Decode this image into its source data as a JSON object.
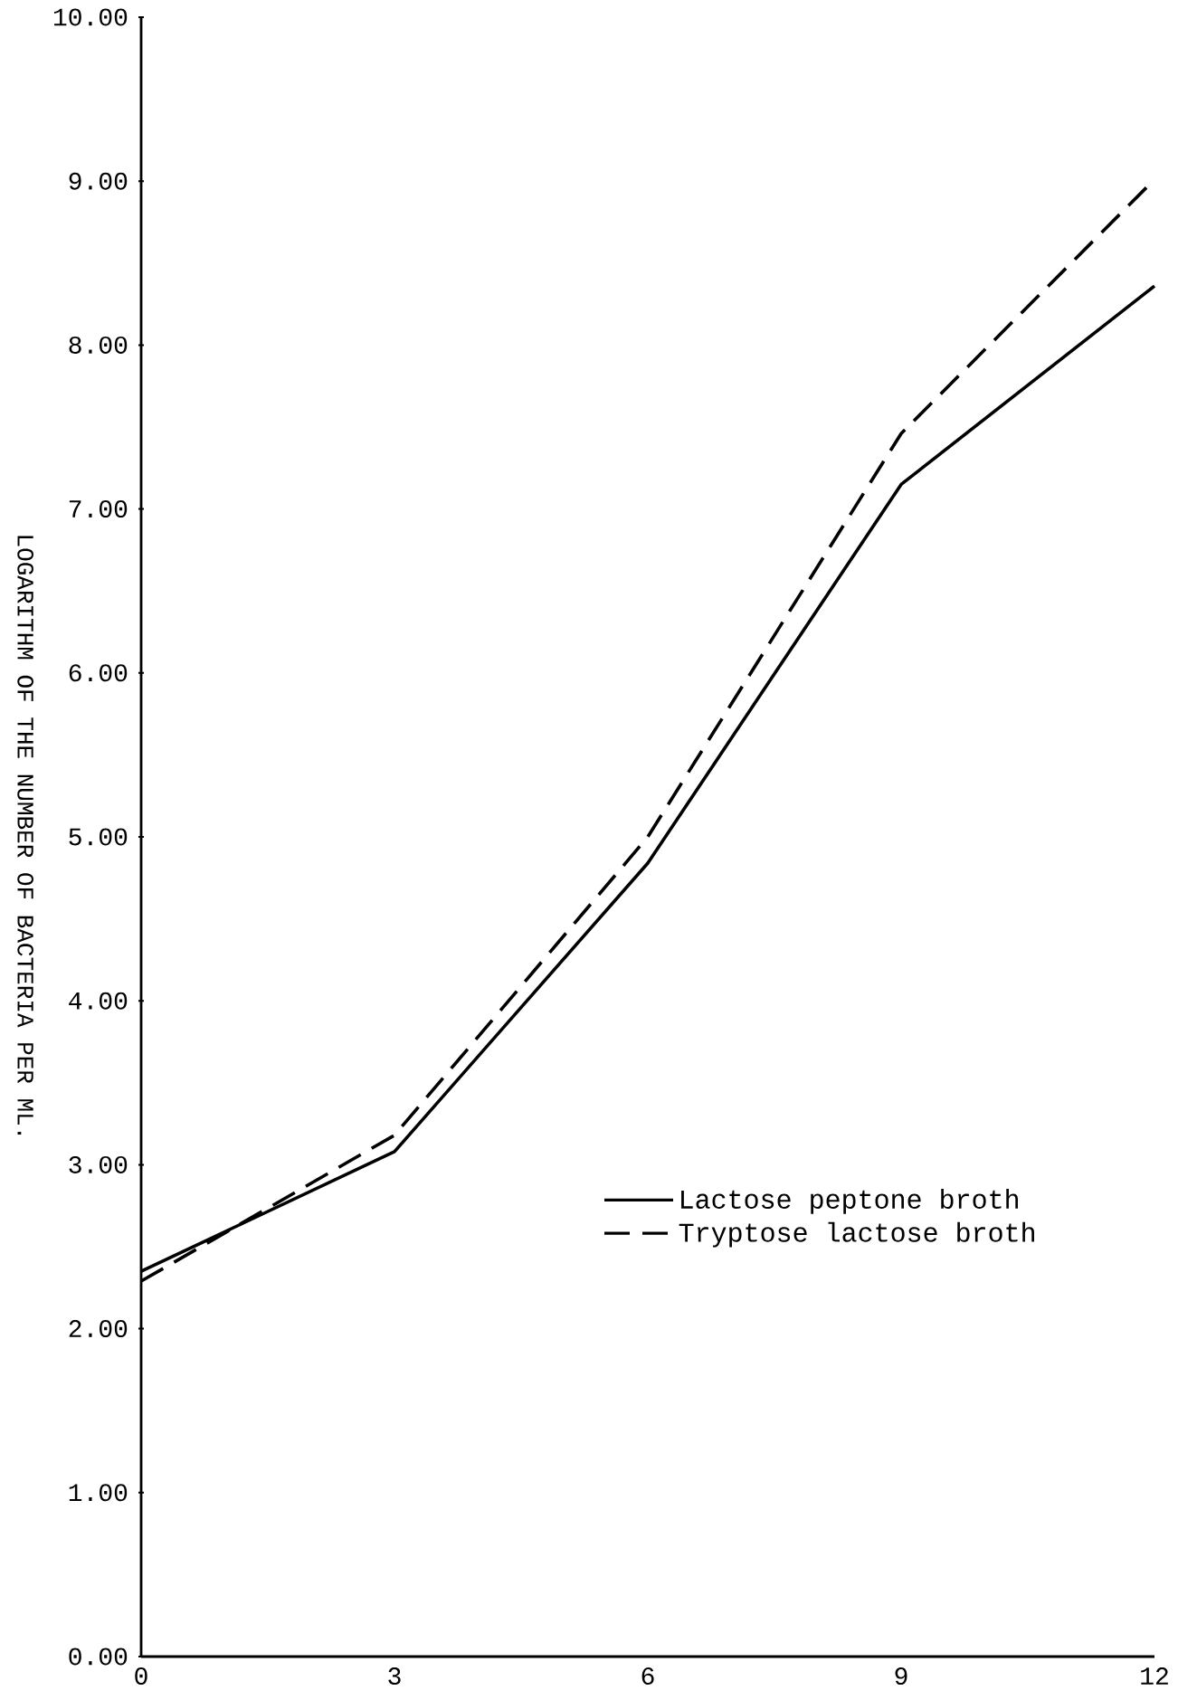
{
  "chart_data": {
    "type": "line",
    "ylabel": "LOGARITHM OF THE NUMBER OF BACTERIA PER ML.",
    "x": [
      0,
      3,
      6,
      9,
      12
    ],
    "xlim": [
      0,
      12
    ],
    "xticks": [
      0,
      3,
      6,
      9,
      12
    ],
    "ylim": [
      0,
      10
    ],
    "yticks": [
      {
        "value": 0,
        "label": "0.00"
      },
      {
        "value": 1,
        "label": "1.00"
      },
      {
        "value": 2,
        "label": "2.00"
      },
      {
        "value": 3,
        "label": "3.00"
      },
      {
        "value": 4,
        "label": "4.00"
      },
      {
        "value": 5,
        "label": "5.00"
      },
      {
        "value": 6,
        "label": "6.00"
      },
      {
        "value": 7,
        "label": "7.00"
      },
      {
        "value": 8,
        "label": "8.00"
      },
      {
        "value": 9,
        "label": "9.00"
      },
      {
        "value": 10,
        "label": "10.00"
      }
    ],
    "legend": "bottom right",
    "grid": false,
    "marker": "none",
    "series": [
      {
        "name": "Lactose peptone broth",
        "color": "#000000",
        "line_style": "solid",
        "values": [
          2.35,
          3.08,
          4.84,
          7.15,
          8.36
        ]
      },
      {
        "name": "Tryptose lactose broth",
        "color": "#000000",
        "line_style": "dashed",
        "values": [
          2.29,
          3.18,
          5.0,
          7.46,
          9.01
        ]
      }
    ]
  }
}
